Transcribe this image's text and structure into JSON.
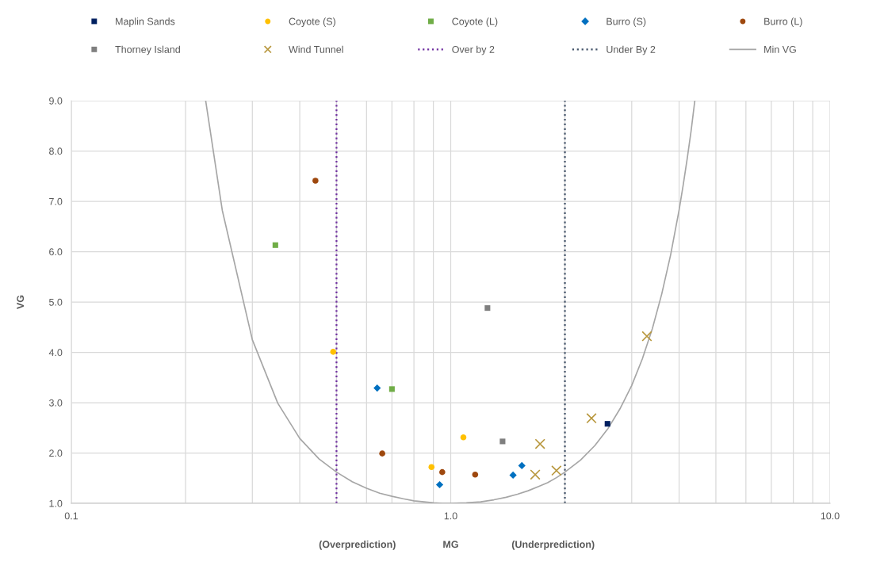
{
  "chart_data": {
    "type": "scatter",
    "xlabel": "MG",
    "ylabel": "VG",
    "annotations": [
      "(Overprediction)",
      "(Underprediction)"
    ],
    "log": "x",
    "xlim": [
      0.1,
      10
    ],
    "ylim": [
      1,
      9
    ],
    "xticks": [
      {
        "value": 0.1,
        "label": "0.1"
      },
      {
        "value": 0.2,
        "label": null
      },
      {
        "value": 0.3,
        "label": null
      },
      {
        "value": 0.4,
        "label": null
      },
      {
        "value": 0.5,
        "label": null
      },
      {
        "value": 0.6,
        "label": null
      },
      {
        "value": 0.7,
        "label": null
      },
      {
        "value": 0.8,
        "label": null
      },
      {
        "value": 0.9,
        "label": null
      },
      {
        "value": 1,
        "label": "1.0"
      },
      {
        "value": 2,
        "label": null
      },
      {
        "value": 3,
        "label": null
      },
      {
        "value": 4,
        "label": null
      },
      {
        "value": 5,
        "label": null
      },
      {
        "value": 6,
        "label": null
      },
      {
        "value": 7,
        "label": null
      },
      {
        "value": 8,
        "label": null
      },
      {
        "value": 9,
        "label": null
      },
      {
        "value": 10,
        "label": "10.0"
      }
    ],
    "yticks": [
      {
        "value": 1,
        "label": "1.0"
      },
      {
        "value": 2,
        "label": "2.0"
      },
      {
        "value": 3,
        "label": "3.0"
      },
      {
        "value": 4,
        "label": "4.0"
      },
      {
        "value": 5,
        "label": "5.0"
      },
      {
        "value": 6,
        "label": "6.0"
      },
      {
        "value": 7,
        "label": "7.0"
      },
      {
        "value": 8,
        "label": "8.0"
      },
      {
        "value": 9,
        "label": "9.0"
      }
    ],
    "grid": true,
    "legend": "top",
    "ref_lines": [
      {
        "axis": "x",
        "value": 0.5,
        "label": "Over by 2",
        "color": "#7030a0",
        "line_style": "dotted"
      },
      {
        "axis": "x",
        "value": 2,
        "label": "Under By 2",
        "color": "#44546a",
        "line_style": "dotted"
      }
    ],
    "series": [
      {
        "name": "Maplin Sands",
        "marker": "square",
        "color": "#002060",
        "x": [
          2.59
        ],
        "values": [
          2.58
        ]
      },
      {
        "name": "Coyote (S)",
        "marker": "circle",
        "color": "#ffc000",
        "x": [
          0.49,
          0.89,
          1.08
        ],
        "values": [
          4.01,
          1.72,
          2.31
        ]
      },
      {
        "name": "Coyote (L)",
        "marker": "square",
        "color": "#70ad47",
        "x": [
          0.345,
          0.7
        ],
        "values": [
          6.13,
          3.27
        ]
      },
      {
        "name": "Burro (S)",
        "marker": "diamond",
        "color": "#0070c0",
        "x": [
          0.64,
          0.935,
          1.46,
          1.54
        ],
        "values": [
          3.29,
          1.37,
          1.56,
          1.75
        ]
      },
      {
        "name": "Burro (L)",
        "marker": "circle",
        "color": "#9e480e",
        "x": [
          0.44,
          0.66,
          0.95,
          1.16
        ],
        "values": [
          7.41,
          1.99,
          1.62,
          1.57
        ]
      },
      {
        "name": "Thorney Island",
        "marker": "square",
        "color": "#7f7f7f",
        "x": [
          1.25,
          1.37
        ],
        "values": [
          4.88,
          2.23
        ]
      },
      {
        "name": "Wind Tunnel",
        "marker": "cross",
        "color": "#b8973d",
        "x": [
          1.72,
          1.67,
          1.9,
          2.35,
          3.29
        ],
        "values": [
          2.18,
          1.57,
          1.65,
          2.69,
          4.32
        ]
      },
      {
        "name": "Min VG",
        "type": "line",
        "marker": "none",
        "line_style": "solid",
        "color": "#a6a6a6",
        "x": [
          0.226,
          0.25,
          0.3,
          0.35,
          0.4,
          0.45,
          0.5,
          0.55,
          0.6,
          0.65,
          0.7,
          0.75,
          0.8,
          0.85,
          0.9,
          0.95,
          1.0,
          1.1,
          1.2,
          1.3,
          1.4,
          1.5,
          1.6,
          1.7,
          1.8,
          1.9,
          2.0,
          2.2,
          2.4,
          2.6,
          2.8,
          3.0,
          3.2,
          3.4,
          3.6,
          3.8,
          4.0,
          4.1,
          4.2,
          4.3,
          4.4
        ],
        "values": [
          9.0,
          6.82,
          4.25,
          2.99,
          2.29,
          1.88,
          1.62,
          1.43,
          1.3,
          1.2,
          1.14,
          1.09,
          1.05,
          1.03,
          1.01,
          1.0,
          1.0,
          1.01,
          1.03,
          1.07,
          1.12,
          1.18,
          1.25,
          1.33,
          1.41,
          1.51,
          1.62,
          1.86,
          2.15,
          2.49,
          2.89,
          3.34,
          3.87,
          4.47,
          5.16,
          5.94,
          6.83,
          7.32,
          7.84,
          8.39,
          9.0
        ]
      }
    ]
  }
}
